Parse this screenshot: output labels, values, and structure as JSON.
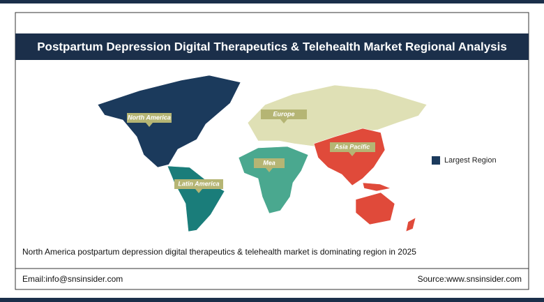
{
  "header": {
    "title": "Postpartum Depression Digital Therapeutics & Telehealth Market Regional Analysis"
  },
  "map": {
    "regions": [
      {
        "label": "North America"
      },
      {
        "label": "Europe"
      },
      {
        "label": "Asia Pacific"
      },
      {
        "label": "Mea"
      },
      {
        "label": "Latin America"
      }
    ],
    "legend": {
      "label": "Largest Region"
    }
  },
  "summary": "North America postpartum depression digital therapeutics & telehealth market is dominating region in 2025",
  "footer": {
    "email": "Email:info@snsinsider.com",
    "source": "Source:www.snsinsider.com"
  }
}
